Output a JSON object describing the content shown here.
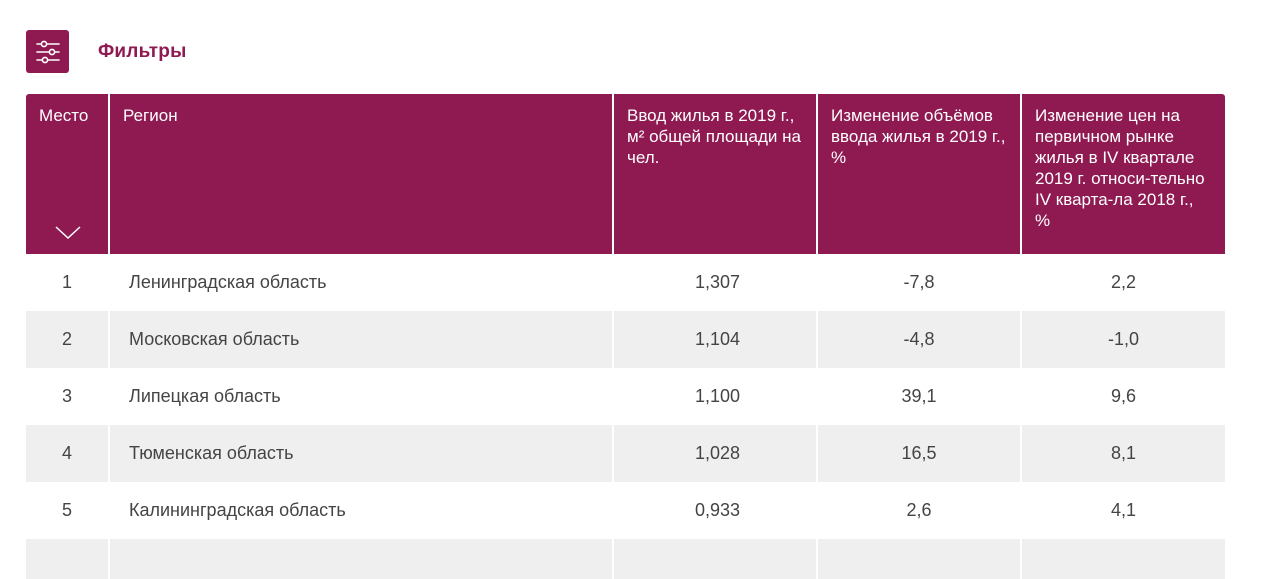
{
  "filters": {
    "icon": "sliders-icon",
    "label": "Фильтры"
  },
  "colors": {
    "accent": "#8f1a52",
    "row_alt": "#efefef",
    "text": "#444444"
  },
  "table": {
    "headers": {
      "rank": "Место",
      "region": "Регион",
      "housing_per_capita": "Ввод жилья в 2019 г., м² общей площади на чел.",
      "volume_change": "Изменение объёмов ввода жилья в 2019 г., %",
      "price_change": "Изменение цен на первичном рынке жилья в IV квартале 2019 г. относи-тельно IV кварта-ла 2018 г., %"
    },
    "sort_icon": "chevron-down-icon",
    "rows": [
      {
        "rank": "1",
        "region": "Ленинградская область",
        "housing_per_capita": "1,307",
        "volume_change": "-7,8",
        "price_change": "2,2"
      },
      {
        "rank": "2",
        "region": "Московская область",
        "housing_per_capita": "1,104",
        "volume_change": "-4,8",
        "price_change": "-1,0"
      },
      {
        "rank": "3",
        "region": "Липецкая область",
        "housing_per_capita": "1,100",
        "volume_change": "39,1",
        "price_change": "9,6"
      },
      {
        "rank": "4",
        "region": "Тюменская область",
        "housing_per_capita": "1,028",
        "volume_change": "16,5",
        "price_change": "8,1"
      },
      {
        "rank": "5",
        "region": "Калининградская область",
        "housing_per_capita": "0,933",
        "volume_change": "2,6",
        "price_change": "4,1"
      }
    ]
  }
}
